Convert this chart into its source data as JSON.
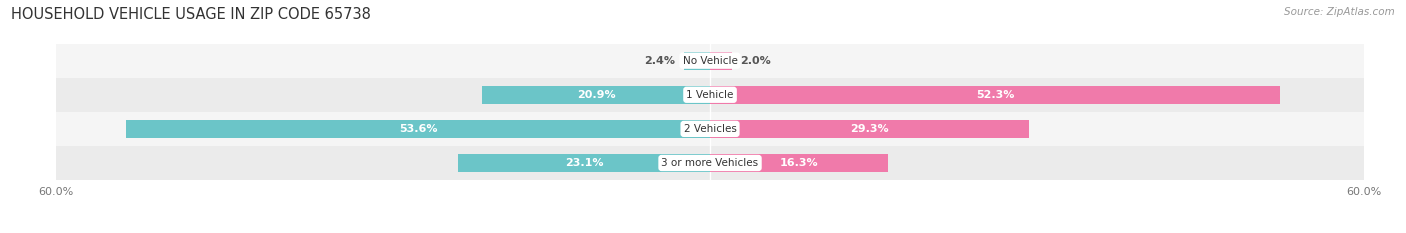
{
  "title": "HOUSEHOLD VEHICLE USAGE IN ZIP CODE 65738",
  "source": "Source: ZipAtlas.com",
  "categories": [
    "3 or more Vehicles",
    "2 Vehicles",
    "1 Vehicle",
    "No Vehicle"
  ],
  "owner_values": [
    23.1,
    53.6,
    20.9,
    2.4
  ],
  "renter_values": [
    16.3,
    29.3,
    52.3,
    2.0
  ],
  "owner_color": "#6bc5c8",
  "renter_color": "#f07aaa",
  "row_bg_colors": [
    "#ebebeb",
    "#f5f5f5",
    "#ebebeb",
    "#f5f5f5"
  ],
  "xlim": 60.0,
  "title_fontsize": 10.5,
  "source_fontsize": 7.5,
  "label_fontsize": 8,
  "bar_height": 0.52,
  "figsize": [
    14.06,
    2.33
  ],
  "dpi": 100
}
